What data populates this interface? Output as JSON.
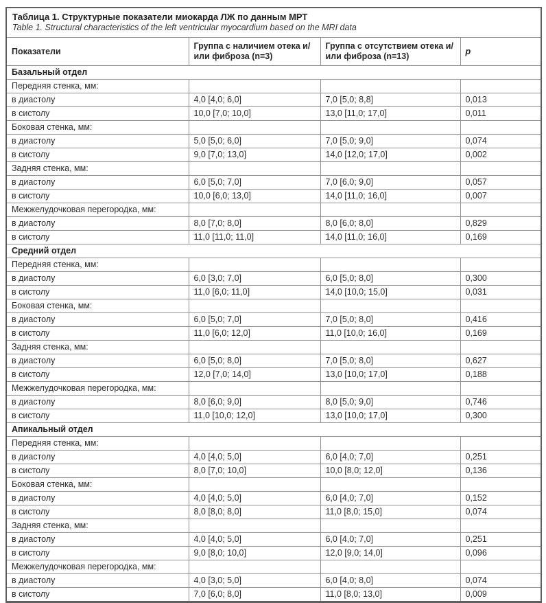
{
  "table": {
    "title_ru": "Таблица 1. Структурные показатели миокарда ЛЖ по данным МРТ",
    "title_en": "Table 1. Structural characteristics of the left ventricular myocardium based on the MRI data",
    "columns": [
      "Показатели",
      "Группа с наличием отека и/или фиброза (n=3)",
      "Группа с отсутствием отека и/или фиброза (n=13)",
      "p"
    ],
    "sections": [
      {
        "name": "Базальный отдел",
        "groups": [
          {
            "label": "Передняя стенка, мм:",
            "rows": [
              {
                "label": "в диастолу",
                "g1": "4,0 [4,0; 6,0]",
                "g2": "7,0 [5,0; 8,8]",
                "p": "0,013"
              },
              {
                "label": "в систолу",
                "g1": "10,0 [7,0; 10,0]",
                "g2": "13,0 [11,0; 17,0]",
                "p": "0,011"
              }
            ]
          },
          {
            "label": "Боковая стенка, мм:",
            "rows": [
              {
                "label": "в диастолу",
                "g1": "5,0 [5,0; 6,0]",
                "g2": "7,0 [5,0; 9,0]",
                "p": "0,074"
              },
              {
                "label": "в систолу",
                "g1": "9,0 [7,0; 13,0]",
                "g2": "14,0 [12,0; 17,0]",
                "p": "0,002"
              }
            ]
          },
          {
            "label": "Задняя стенка, мм:",
            "rows": [
              {
                "label": "в диастолу",
                "g1": "6,0 [5,0; 7,0]",
                "g2": "7,0 [6,0; 9,0]",
                "p": "0,057"
              },
              {
                "label": "в систолу",
                "g1": "10,0 [6,0; 13,0]",
                "g2": "14,0 [11,0; 16,0]",
                "p": "0,007"
              }
            ]
          },
          {
            "label": "Межжелудочковая перегородка, мм:",
            "rows": [
              {
                "label": "в диастолу",
                "g1": "8,0 [7,0; 8,0]",
                "g2": "8,0 [6,0; 8,0]",
                "p": "0,829"
              },
              {
                "label": "в систолу",
                "g1": "11,0 [11,0; 11,0]",
                "g2": "14,0 [11,0; 16,0]",
                "p": "0,169"
              }
            ]
          }
        ]
      },
      {
        "name": "Средний отдел",
        "groups": [
          {
            "label": "Передняя стенка, мм:",
            "rows": [
              {
                "label": "в диастолу",
                "g1": "6,0 [3,0; 7,0]",
                "g2": "6,0 [5,0; 8,0]",
                "p": "0,300"
              },
              {
                "label": "в систолу",
                "g1": "11,0 [6,0; 11,0]",
                "g2": "14,0 [10,0; 15,0]",
                "p": "0,031"
              }
            ]
          },
          {
            "label": "Боковая стенка, мм:",
            "rows": [
              {
                "label": "в диастолу",
                "g1": "6,0 [5,0; 7,0]",
                "g2": "7,0 [5,0; 8,0]",
                "p": "0,416"
              },
              {
                "label": "в систолу",
                "g1": "11,0 [6,0; 12,0]",
                "g2": "11,0 [10,0; 16,0]",
                "p": "0,169"
              }
            ]
          },
          {
            "label": "Задняя стенка, мм:",
            "rows": [
              {
                "label": "в диастолу",
                "g1": "6,0 [5,0; 8,0]",
                "g2": "7,0 [5,0; 8,0]",
                "p": "0,627"
              },
              {
                "label": "в систолу",
                "g1": "12,0 [7,0; 14,0]",
                "g2": "13,0 [10,0; 17,0]",
                "p": "0,188"
              }
            ]
          },
          {
            "label": "Межжелудочковая перегородка, мм:",
            "rows": [
              {
                "label": "в диастолу",
                "g1": "8,0 [6,0; 9,0]",
                "g2": "8,0 [5,0; 9,0]",
                "p": "0,746"
              },
              {
                "label": "в систолу",
                "g1": "11,0 [10,0; 12,0]",
                "g2": "13,0 [10,0; 17,0]",
                "p": "0,300"
              }
            ]
          }
        ]
      },
      {
        "name": "Апикальный отдел",
        "groups": [
          {
            "label": "Передняя стенка, мм:",
            "rows": [
              {
                "label": "в диастолу",
                "g1": "4,0 [4,0; 5,0]",
                "g2": "6,0 [4,0; 7,0]",
                "p": "0,251"
              },
              {
                "label": "в систолу",
                "g1": "8,0 [7,0; 10,0]",
                "g2": "10,0 [8,0; 12,0]",
                "p": "0,136"
              }
            ]
          },
          {
            "label": "Боковая стенка, мм:",
            "rows": [
              {
                "label": "в диастолу",
                "g1": "4,0 [4,0; 5,0]",
                "g2": "6,0 [4,0; 7,0]",
                "p": "0,152"
              },
              {
                "label": "в систолу",
                "g1": "8,0 [8,0; 8,0]",
                "g2": "11,0 [8,0; 15,0]",
                "p": "0,074"
              }
            ]
          },
          {
            "label": "Задняя стенка, мм:",
            "rows": [
              {
                "label": "в диастолу",
                "g1": "4,0 [4,0; 5,0]",
                "g2": "6,0 [4,0; 7,0]",
                "p": "0,251"
              },
              {
                "label": "в систолу",
                "g1": "9,0 [8,0; 10,0]",
                "g2": "12,0 [9,0; 14,0]",
                "p": "0,096"
              }
            ]
          },
          {
            "label": "Межжелудочковая перегородка, мм:",
            "rows": [
              {
                "label": "в диастолу",
                "g1": "4,0 [3,0; 5,0]",
                "g2": "6,0 [4,0; 8,0]",
                "p": "0,074"
              },
              {
                "label": "в систолу",
                "g1": "7,0 [6,0; 8,0]",
                "g2": "11,0 [8,0; 13,0]",
                "p": "0,009"
              }
            ]
          }
        ]
      }
    ]
  }
}
